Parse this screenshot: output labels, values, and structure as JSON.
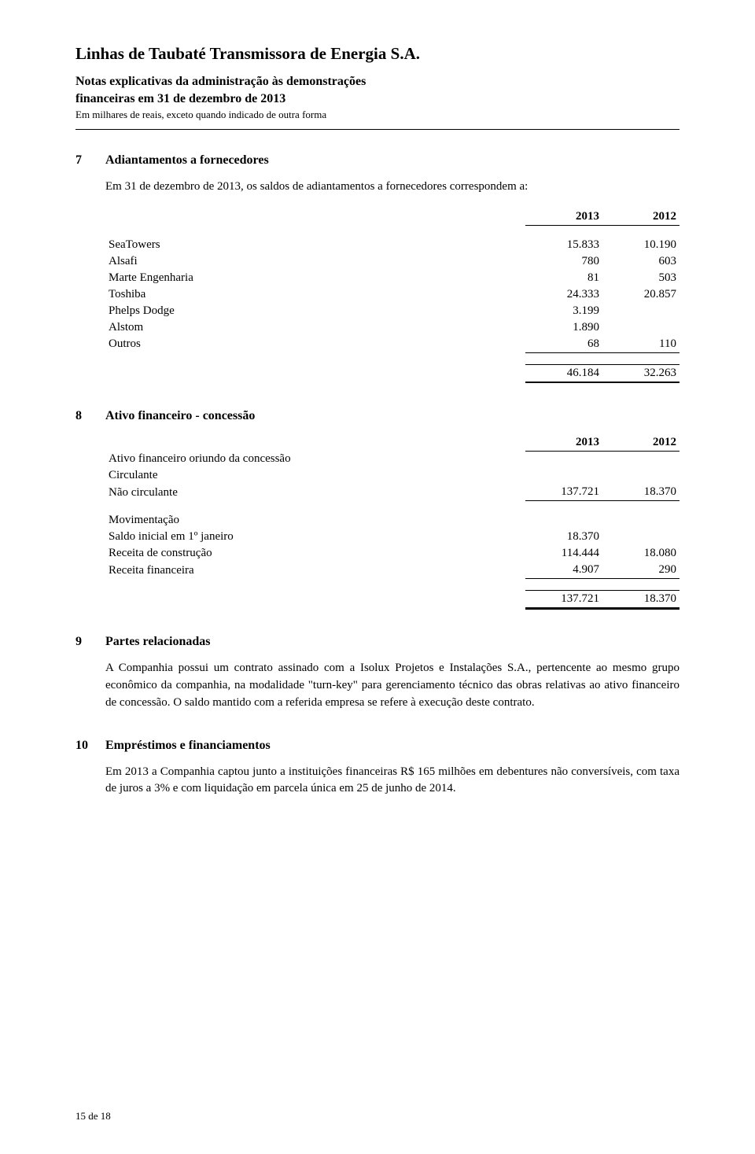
{
  "header": {
    "company": "Linhas de Taubaté Transmissora de Energia S.A.",
    "notes_line1": "Notas explicativas da administração às demonstrações",
    "notes_line2": "financeiras em 31 de dezembro de 2013",
    "units": "Em milhares de reais, exceto quando indicado de outra forma"
  },
  "sections": {
    "s7": {
      "num": "7",
      "title": "Adiantamentos a fornecedores",
      "intro": "Em 31 de dezembro de 2013, os saldos de adiantamentos a fornecedores correspondem a:",
      "col_2013": "2013",
      "col_2012": "2012",
      "rows": [
        {
          "label": "SeaTowers",
          "v2013": "15.833",
          "v2012": "10.190"
        },
        {
          "label": "Alsafi",
          "v2013": "780",
          "v2012": "603"
        },
        {
          "label": "Marte Engenharia",
          "v2013": "81",
          "v2012": "503"
        },
        {
          "label": "Toshiba",
          "v2013": "24.333",
          "v2012": "20.857"
        },
        {
          "label": "Phelps Dodge",
          "v2013": "3.199",
          "v2012": ""
        },
        {
          "label": "Alstom",
          "v2013": "1.890",
          "v2012": ""
        },
        {
          "label": "Outros",
          "v2013": "68",
          "v2012": "110"
        }
      ],
      "total_2013": "46.184",
      "total_2012": "32.263"
    },
    "s8": {
      "num": "8",
      "title": "Ativo financeiro - concessão",
      "col_2013": "2013",
      "col_2012": "2012",
      "group1_label": "Ativo financeiro oriundo da concessão",
      "circulante_label": "Circulante",
      "nao_circ_label": "Não circulante",
      "nao_circ_2013": "137.721",
      "nao_circ_2012": "18.370",
      "group2_label": "Movimentação",
      "saldo_label": "Saldo inicial em 1º janeiro",
      "saldo_2013": "18.370",
      "saldo_2012": "",
      "rc_label": "Receita de construção",
      "rc_2013": "114.444",
      "rc_2012": "18.080",
      "rf_label": "Receita financeira",
      "rf_2013": "4.907",
      "rf_2012": "290",
      "total_2013": "137.721",
      "total_2012": "18.370"
    },
    "s9": {
      "num": "9",
      "title": "Partes relacionadas",
      "text": "A Companhia possui um contrato assinado com a Isolux Projetos e Instalações S.A., pertencente ao mesmo grupo econômico da companhia, na modalidade \"turn-key\" para gerenciamento técnico das obras relativas ao ativo financeiro de concessão. O saldo mantido com a referida empresa se refere à execução deste contrato."
    },
    "s10": {
      "num": "10",
      "title": "Empréstimos e financiamentos",
      "text": "Em 2013 a Companhia captou junto a instituições financeiras R$ 165 milhões em debentures não conversíveis, com taxa de juros a 3% e com liquidação em parcela única em 25 de junho de 2014."
    }
  },
  "footer": "15 de 18"
}
